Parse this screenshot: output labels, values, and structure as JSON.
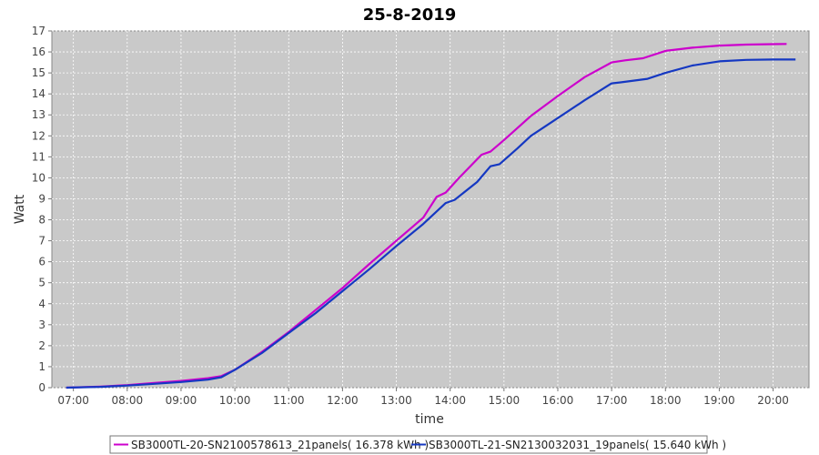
{
  "chart_data": {
    "type": "line",
    "title": "25-8-2019",
    "xlabel": "time",
    "ylabel": "Watt",
    "x_ticks": [
      "07:00",
      "08:00",
      "09:00",
      "10:00",
      "11:00",
      "12:00",
      "13:00",
      "14:00",
      "15:00",
      "16:00",
      "17:00",
      "18:00",
      "19:00",
      "20:00"
    ],
    "xlim": [
      "06:36",
      "20:40"
    ],
    "ylim": [
      0,
      17
    ],
    "y_ticks": [
      0,
      1,
      2,
      3,
      4,
      5,
      6,
      7,
      8,
      9,
      10,
      11,
      12,
      13,
      14,
      15,
      16,
      17
    ],
    "grid": true,
    "legend_position": "bottom",
    "series": [
      {
        "name": "SB3000TL-20-SN2100578613_21panels( 16.378 kWh )",
        "color": "#cc00cc",
        "points": [
          [
            "06:52",
            0.0
          ],
          [
            "07:30",
            0.05
          ],
          [
            "08:00",
            0.12
          ],
          [
            "08:30",
            0.22
          ],
          [
            "09:00",
            0.32
          ],
          [
            "09:30",
            0.45
          ],
          [
            "09:45",
            0.55
          ],
          [
            "10:00",
            0.85
          ],
          [
            "10:30",
            1.7
          ],
          [
            "11:00",
            2.65
          ],
          [
            "11:30",
            3.7
          ],
          [
            "12:00",
            4.75
          ],
          [
            "12:30",
            5.9
          ],
          [
            "13:00",
            7.0
          ],
          [
            "13:30",
            8.1
          ],
          [
            "13:45",
            9.1
          ],
          [
            "13:55",
            9.3
          ],
          [
            "14:10",
            10.0
          ],
          [
            "14:35",
            11.1
          ],
          [
            "14:45",
            11.25
          ],
          [
            "15:00",
            11.8
          ],
          [
            "15:30",
            12.95
          ],
          [
            "16:00",
            13.9
          ],
          [
            "16:30",
            14.8
          ],
          [
            "17:00",
            15.5
          ],
          [
            "17:15",
            15.6
          ],
          [
            "17:35",
            15.7
          ],
          [
            "18:00",
            16.05
          ],
          [
            "18:30",
            16.2
          ],
          [
            "19:00",
            16.3
          ],
          [
            "19:30",
            16.35
          ],
          [
            "20:00",
            16.37
          ],
          [
            "20:15",
            16.378
          ]
        ]
      },
      {
        "name": "SB3000TL-21-SN2130032031_19panels( 15.640 kWh )",
        "color": "#1538c2",
        "points": [
          [
            "06:52",
            0.0
          ],
          [
            "07:30",
            0.04
          ],
          [
            "08:00",
            0.1
          ],
          [
            "08:30",
            0.18
          ],
          [
            "09:00",
            0.27
          ],
          [
            "09:30",
            0.38
          ],
          [
            "09:45",
            0.5
          ],
          [
            "10:00",
            0.85
          ],
          [
            "10:30",
            1.65
          ],
          [
            "11:00",
            2.6
          ],
          [
            "11:30",
            3.55
          ],
          [
            "12:00",
            4.6
          ],
          [
            "12:30",
            5.65
          ],
          [
            "13:00",
            6.75
          ],
          [
            "13:30",
            7.8
          ],
          [
            "13:55",
            8.8
          ],
          [
            "14:05",
            8.95
          ],
          [
            "14:30",
            9.8
          ],
          [
            "14:45",
            10.55
          ],
          [
            "14:55",
            10.65
          ],
          [
            "15:15",
            11.4
          ],
          [
            "15:30",
            12.0
          ],
          [
            "16:00",
            12.85
          ],
          [
            "16:30",
            13.7
          ],
          [
            "17:00",
            14.5
          ],
          [
            "17:10",
            14.55
          ],
          [
            "17:40",
            14.72
          ],
          [
            "18:00",
            15.0
          ],
          [
            "18:30",
            15.35
          ],
          [
            "19:00",
            15.55
          ],
          [
            "19:30",
            15.62
          ],
          [
            "20:00",
            15.64
          ],
          [
            "20:25",
            15.64
          ]
        ]
      }
    ]
  }
}
